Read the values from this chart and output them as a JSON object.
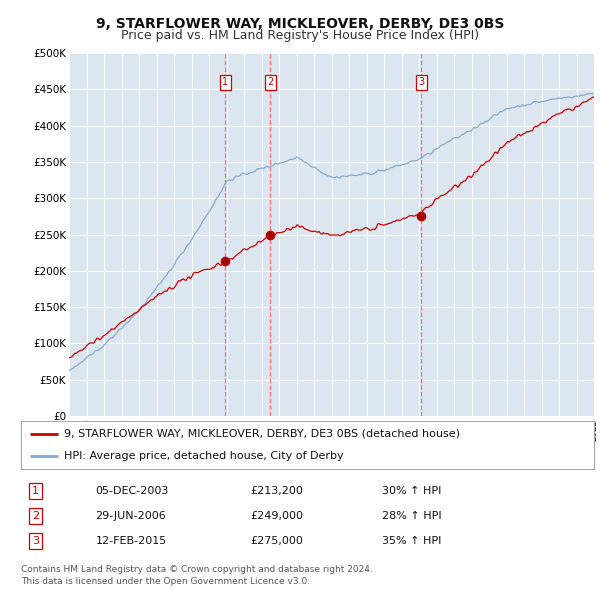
{
  "title": "9, STARFLOWER WAY, MICKLEOVER, DERBY, DE3 0BS",
  "subtitle": "Price paid vs. HM Land Registry's House Price Index (HPI)",
  "legend_house": "9, STARFLOWER WAY, MICKLEOVER, DERBY, DE3 0BS (detached house)",
  "legend_hpi": "HPI: Average price, detached house, City of Derby",
  "footer1": "Contains HM Land Registry data © Crown copyright and database right 2024.",
  "footer2": "This data is licensed under the Open Government Licence v3.0.",
  "transactions": [
    {
      "num": 1,
      "date": "05-DEC-2003",
      "price": "£213,200",
      "change": "30% ↑ HPI",
      "year": 2003.917
    },
    {
      "num": 2,
      "date": "29-JUN-2006",
      "price": "£249,000",
      "change": "28% ↑ HPI",
      "year": 2006.5
    },
    {
      "num": 3,
      "date": "12-FEB-2015",
      "price": "£275,000",
      "change": "35% ↑ HPI",
      "year": 2015.12
    }
  ],
  "xmin": 1995,
  "xmax": 2025,
  "ymin": 0,
  "ymax": 500000,
  "yticks": [
    0,
    50000,
    100000,
    150000,
    200000,
    250000,
    300000,
    350000,
    400000,
    450000,
    500000
  ],
  "ytick_labels": [
    "£0",
    "£50K",
    "£100K",
    "£150K",
    "£200K",
    "£250K",
    "£300K",
    "£350K",
    "£400K",
    "£450K",
    "£500K"
  ],
  "red_color": "#cc0000",
  "blue_color": "#88aacc",
  "dashed_color": "#ff6666",
  "bg_color": "#ffffff",
  "plot_bg_color": "#dce6f0",
  "grid_color": "#ffffff",
  "title_fontsize": 10,
  "subtitle_fontsize": 9,
  "axis_fontsize": 7.5,
  "legend_fontsize": 8,
  "footer_fontsize": 6.5
}
